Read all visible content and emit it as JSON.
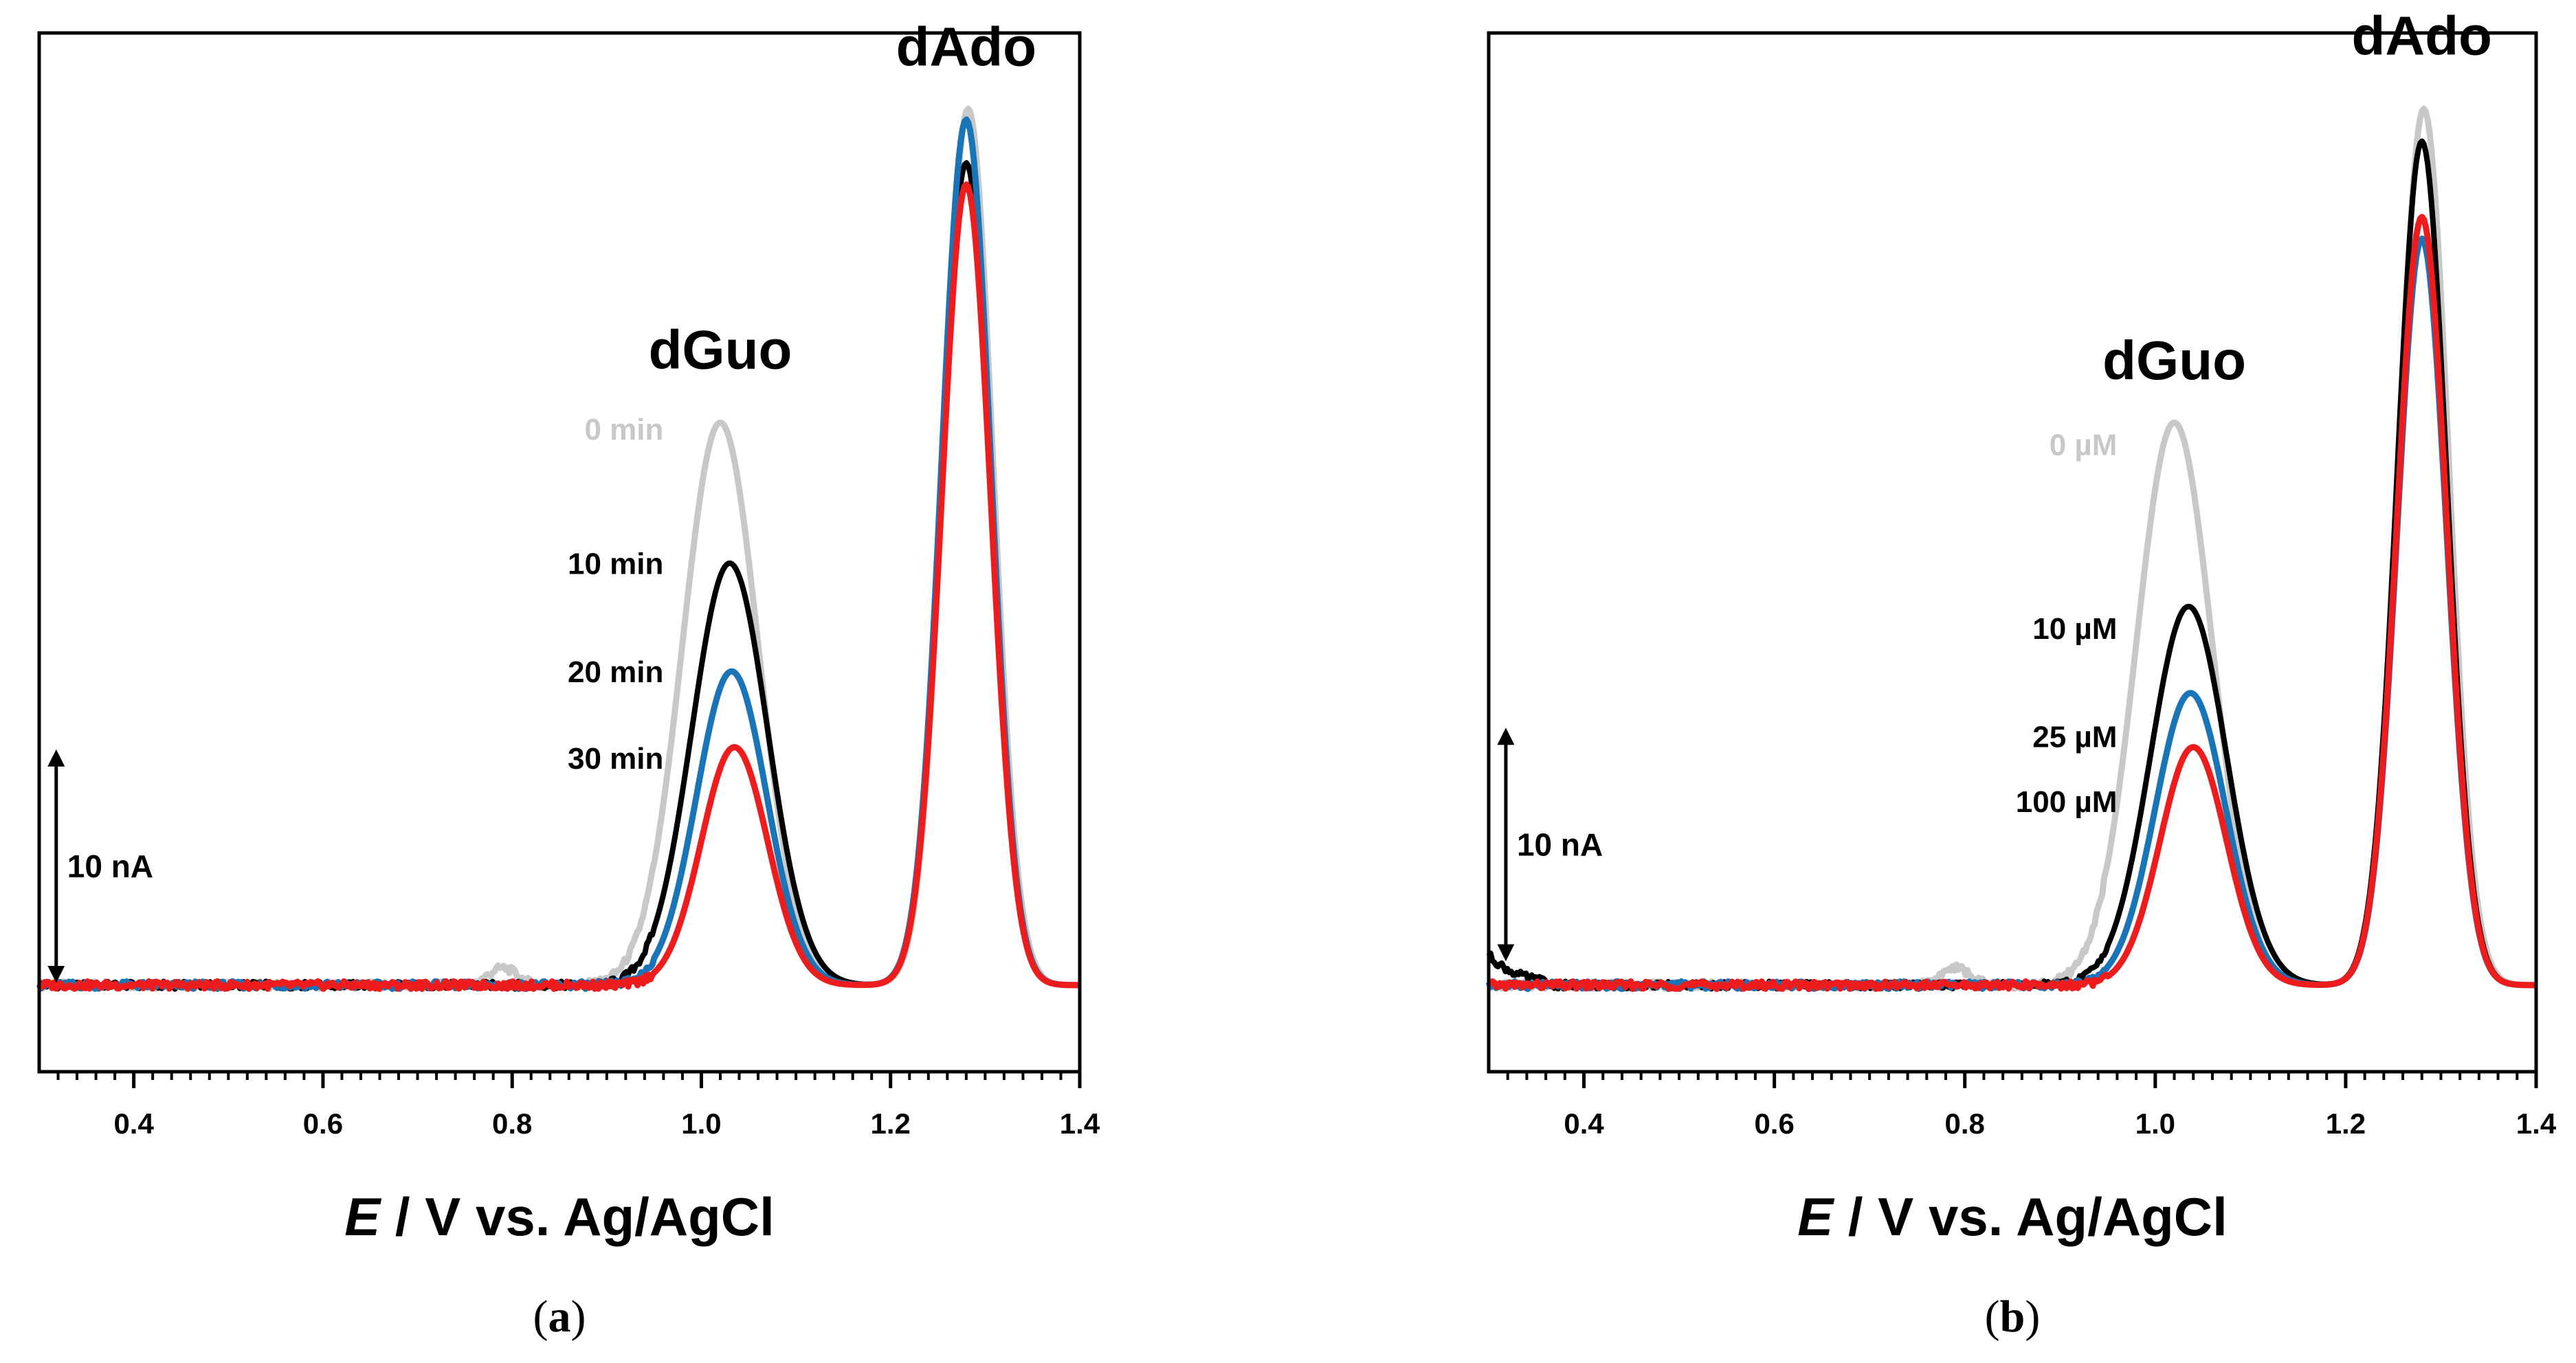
{
  "figure": {
    "panels": [
      {
        "caption_open": "(",
        "caption_letter": "a",
        "caption_close": ")",
        "axis_title_italic": "E",
        "axis_title_rest": " / V vs. Ag/AgCl",
        "scale_bar_label": "10 nA",
        "peak_labels": [
          "dGuo",
          "dAdo"
        ]
      },
      {
        "caption_open": "(",
        "caption_letter": "b",
        "caption_close": ")",
        "axis_title_italic": "E",
        "axis_title_rest": " / V vs. Ag/AgCl",
        "scale_bar_label": "10 nA",
        "peak_labels": [
          "dGuo",
          "dAdo"
        ]
      }
    ]
  },
  "chart_data": [
    {
      "type": "line",
      "title": "",
      "xlabel": "E / V vs. Ag/AgCl",
      "ylabel": "",
      "xlim": [
        0.3,
        1.4
      ],
      "ylim": [
        -4,
        44
      ],
      "x_ticks": [
        0.4,
        0.6,
        0.8,
        1.0,
        1.2,
        1.4
      ],
      "x_tick_labels": [
        "0.4",
        "0.6",
        "0.8",
        "1.0",
        "1.2",
        "1.4"
      ],
      "x_minor_step": 0.02,
      "grid": false,
      "units": "nA",
      "baseline": 0,
      "scale_bar": {
        "label": "10 nA",
        "value": 10,
        "y_from": 0.5,
        "x": 0.318
      },
      "annotations": [
        {
          "text": "dGuo",
          "x": 1.02,
          "y": 28.5
        },
        {
          "text": "dAdo",
          "x": 1.28,
          "y": 42.5
        }
      ],
      "series": [
        {
          "name": "0 min",
          "color": "#c8c8c8",
          "label_x": 0.96,
          "label_y": 25.2,
          "peaks": [
            {
              "center": 1.02,
              "height": 26.0,
              "width": 0.04
            },
            {
              "center": 1.282,
              "height": 40.5,
              "width": 0.026
            },
            {
              "center": 0.79,
              "height": 0.8,
              "width": 0.015
            }
          ]
        },
        {
          "name": "10 min",
          "color": "#000000",
          "label_x": 0.96,
          "label_y": 19.0,
          "peaks": [
            {
              "center": 1.03,
              "height": 19.5,
              "width": 0.04
            },
            {
              "center": 1.28,
              "height": 38.0,
              "width": 0.026
            }
          ]
        },
        {
          "name": "20 min",
          "color": "#1a74b8",
          "label_x": 0.96,
          "label_y": 14.0,
          "peaks": [
            {
              "center": 1.032,
              "height": 14.5,
              "width": 0.037
            },
            {
              "center": 1.28,
              "height": 40.0,
              "width": 0.026
            }
          ]
        },
        {
          "name": "30 min",
          "color": "#ee1c1c",
          "label_x": 0.96,
          "label_y": 10.0,
          "peaks": [
            {
              "center": 1.035,
              "height": 11.0,
              "width": 0.035
            },
            {
              "center": 1.28,
              "height": 37.0,
              "width": 0.026
            }
          ]
        }
      ]
    },
    {
      "type": "line",
      "title": "",
      "xlabel": "E / V vs. Ag/AgCl",
      "ylabel": "",
      "xlim": [
        0.3,
        1.4
      ],
      "ylim": [
        -4,
        44
      ],
      "x_ticks": [
        0.4,
        0.6,
        0.8,
        1.0,
        1.2,
        1.4
      ],
      "x_tick_labels": [
        "0.4",
        "0.6",
        "0.8",
        "1.0",
        "1.2",
        "1.4"
      ],
      "x_minor_step": 0.02,
      "grid": false,
      "units": "nA",
      "baseline": 0,
      "scale_bar": {
        "label": "10 nA",
        "value": 10,
        "y_from": 1.5,
        "x": 0.318
      },
      "annotations": [
        {
          "text": "dGuo",
          "x": 1.02,
          "y": 28.0
        },
        {
          "text": "dAdo",
          "x": 1.28,
          "y": 43.0
        }
      ],
      "series": [
        {
          "name": "0 µM",
          "color": "#c8c8c8",
          "label_x": 0.96,
          "label_y": 24.5,
          "peaks": [
            {
              "center": 1.02,
              "height": 26.0,
              "width": 0.04
            },
            {
              "center": 1.282,
              "height": 40.5,
              "width": 0.026
            },
            {
              "center": 0.79,
              "height": 0.8,
              "width": 0.015
            }
          ]
        },
        {
          "name": "10 µM",
          "color": "#000000",
          "label_x": 0.96,
          "label_y": 16.0,
          "peaks": [
            {
              "center": 1.035,
              "height": 17.5,
              "width": 0.04
            },
            {
              "center": 1.28,
              "height": 39.0,
              "width": 0.026
            }
          ]
        },
        {
          "name": "25 µM",
          "color": "#1a74b8",
          "label_x": 0.96,
          "label_y": 11.0,
          "peaks": [
            {
              "center": 1.037,
              "height": 13.5,
              "width": 0.037
            },
            {
              "center": 1.28,
              "height": 34.5,
              "width": 0.026
            }
          ]
        },
        {
          "name": "100 µM",
          "color": "#ee1c1c",
          "label_x": 0.96,
          "label_y": 8.0,
          "peaks": [
            {
              "center": 1.04,
              "height": 11.0,
              "width": 0.035
            },
            {
              "center": 1.28,
              "height": 35.5,
              "width": 0.026
            }
          ]
        }
      ]
    }
  ]
}
